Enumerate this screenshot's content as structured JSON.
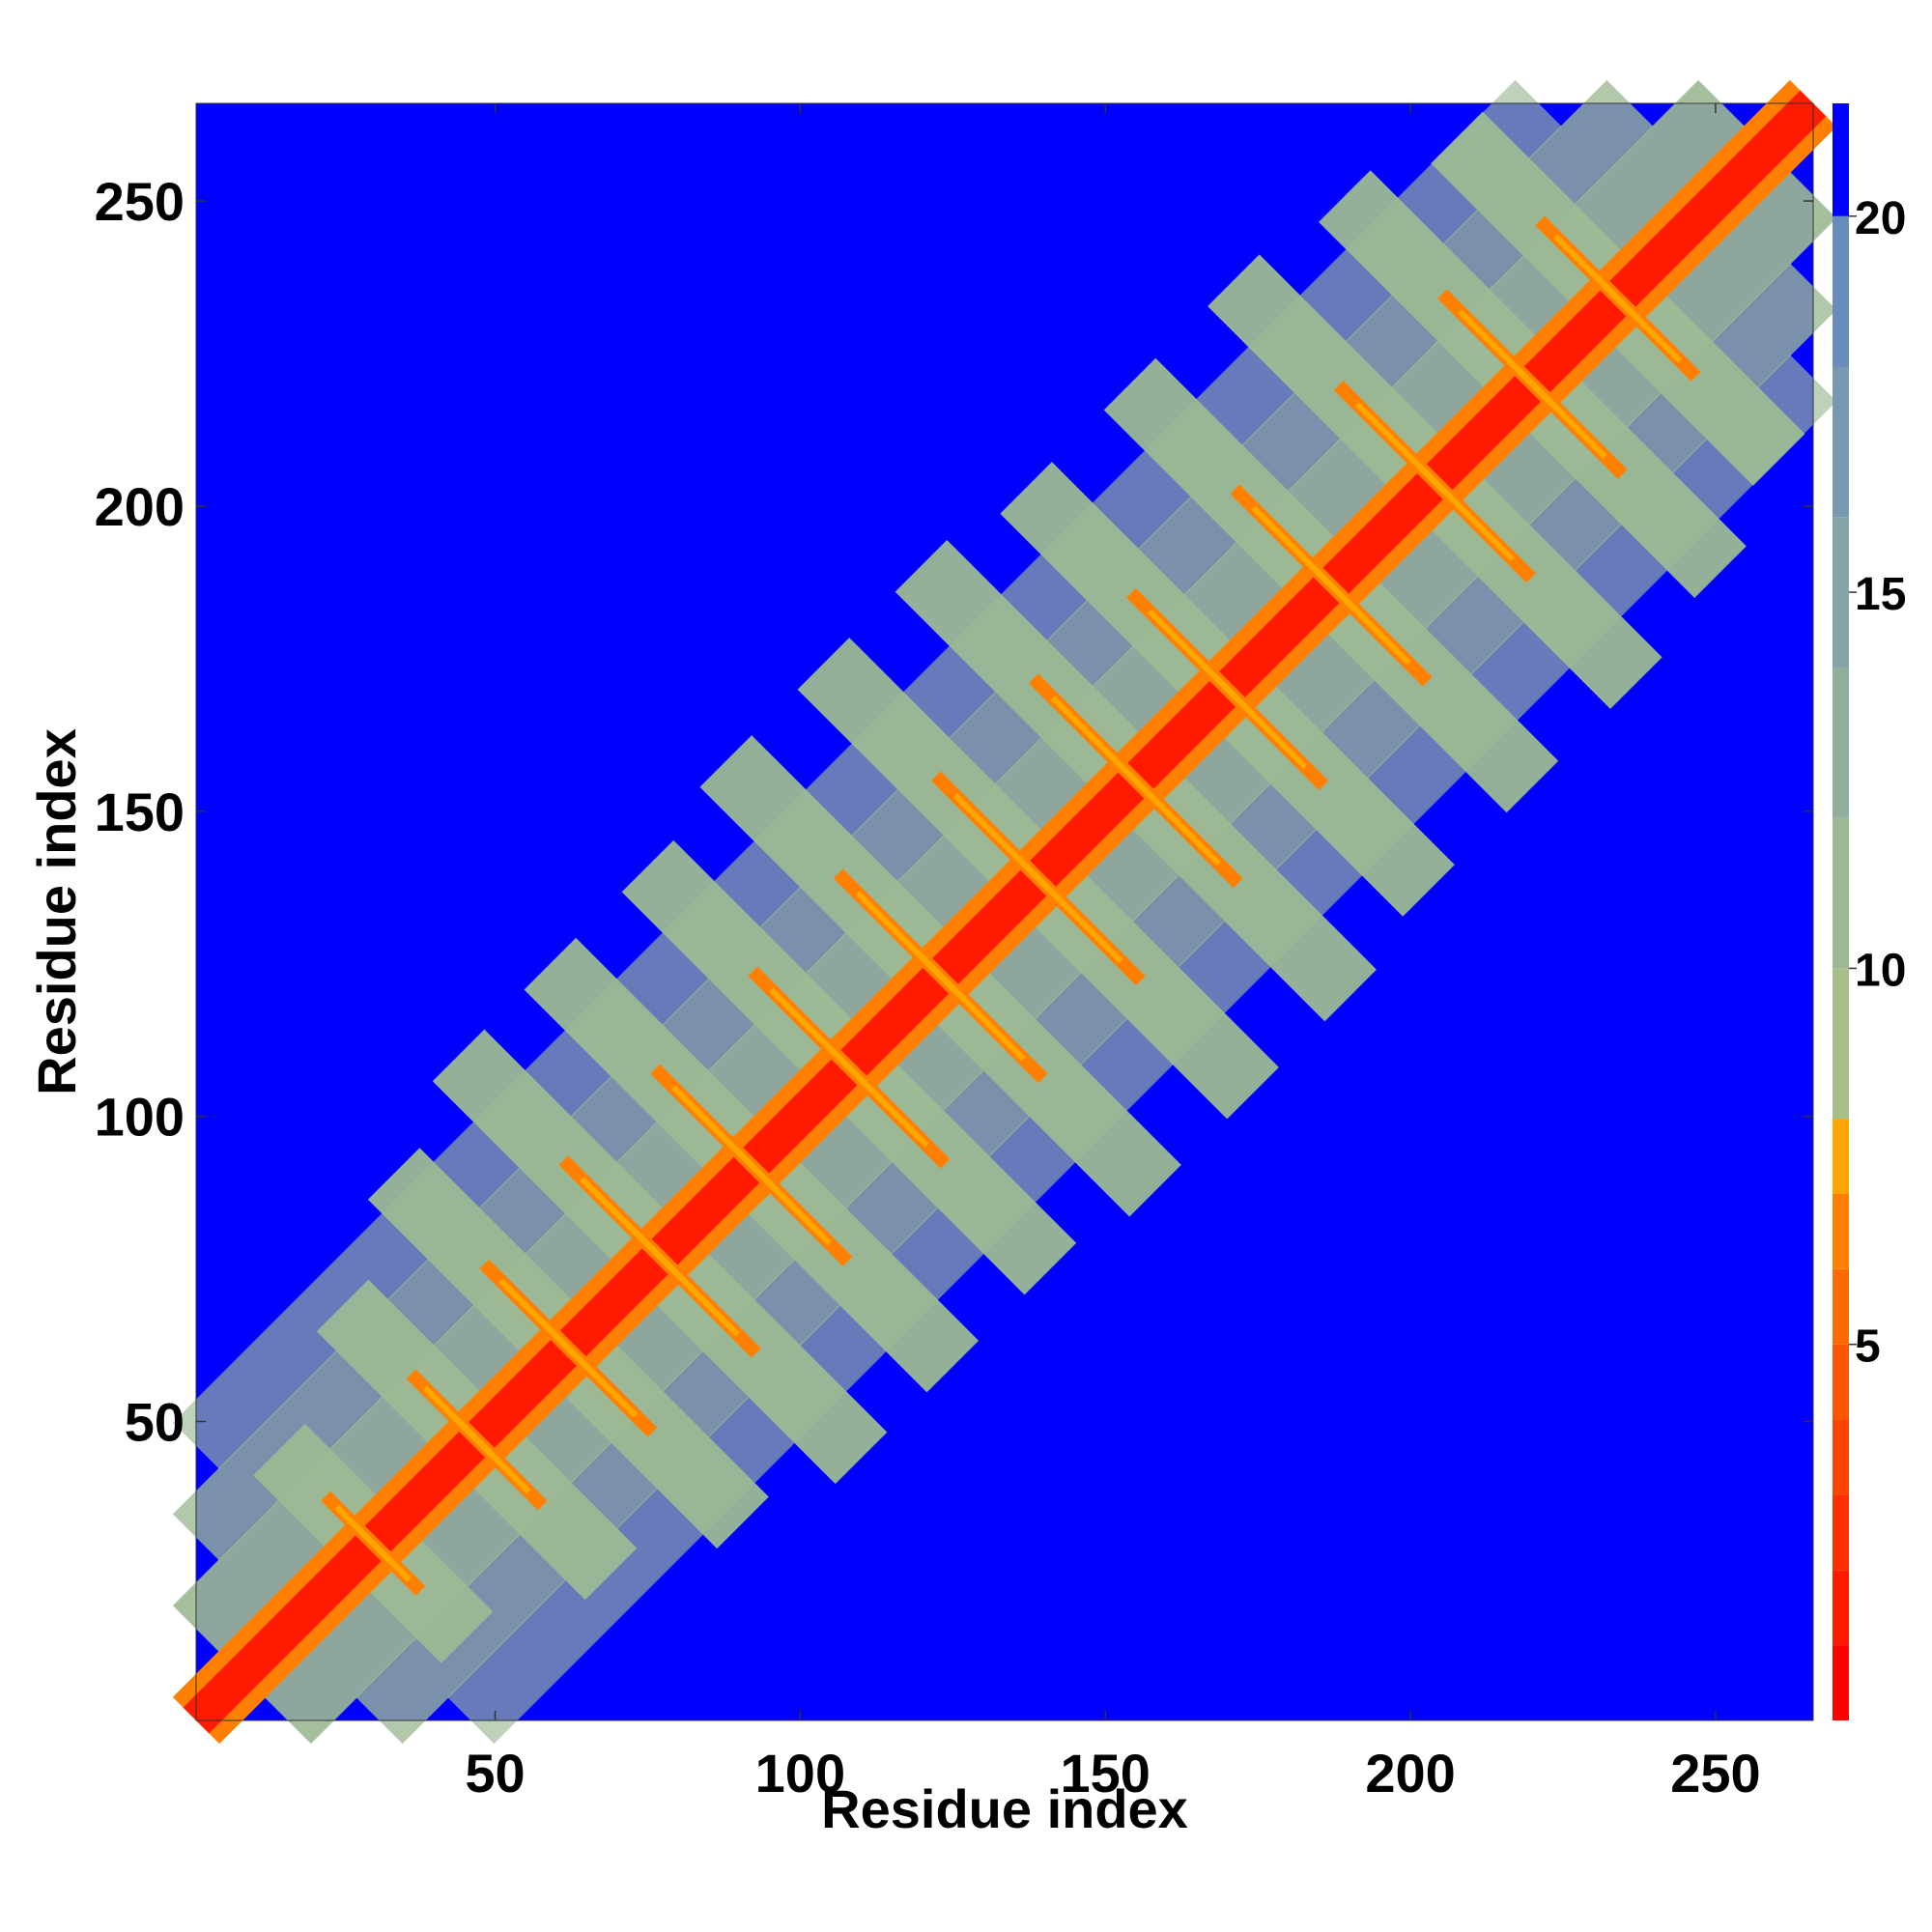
{
  "chart_data": {
    "type": "heatmap",
    "title": "",
    "xlabel": "Residue index",
    "ylabel": "Residue index",
    "xlim": [
      1,
      266
    ],
    "ylim": [
      1,
      266
    ],
    "x_ticks": [
      50,
      100,
      150,
      200,
      250
    ],
    "y_ticks": [
      50,
      100,
      150,
      200,
      250
    ],
    "colorbar": {
      "range": [
        0,
        21.5
      ],
      "ticks": [
        5,
        10,
        15,
        20
      ],
      "bins": [
        {
          "from": 0,
          "to": 1.0,
          "color": "#ff0000"
        },
        {
          "from": 1.0,
          "to": 2.0,
          "color": "#ff1a00"
        },
        {
          "from": 2.0,
          "to": 3.0,
          "color": "#ff2e00"
        },
        {
          "from": 3.0,
          "to": 4.0,
          "color": "#ff4200"
        },
        {
          "from": 4.0,
          "to": 5.0,
          "color": "#ff5500"
        },
        {
          "from": 5.0,
          "to": 6.0,
          "color": "#ff6a00"
        },
        {
          "from": 6.0,
          "to": 7.0,
          "color": "#ff8000"
        },
        {
          "from": 7.0,
          "to": 8.0,
          "color": "#ffa500"
        },
        {
          "from": 8.0,
          "to": 10.0,
          "color": "#a6bf8a"
        },
        {
          "from": 10.0,
          "to": 12.0,
          "color": "#9cb994"
        },
        {
          "from": 12.0,
          "to": 14.0,
          "color": "#90ae9c"
        },
        {
          "from": 14.0,
          "to": 16.0,
          "color": "#84a4a8"
        },
        {
          "from": 16.0,
          "to": 18.0,
          "color": "#7898b2"
        },
        {
          "from": 18.0,
          "to": 20.0,
          "color": "#6a8cbc"
        },
        {
          "from": 20.0,
          "to": 21.5,
          "color": "#0000ff"
        }
      ]
    },
    "background_color": "#0000ff",
    "matrix_description_values": {
      "diagonal_value": 1,
      "near_diagonal_value": 6,
      "contact_band_value": 11,
      "far_value": 21
    },
    "diagonal_band_half_width": 3,
    "antidiagonal_contacts": [
      {
        "center": [
          30,
          30
        ],
        "length": 14
      },
      {
        "center": [
          47,
          47
        ],
        "length": 20
      },
      {
        "center": [
          62,
          62
        ],
        "length": 26
      },
      {
        "center": [
          77,
          77
        ],
        "length": 30
      },
      {
        "center": [
          92,
          92
        ],
        "length": 30
      },
      {
        "center": [
          108,
          108
        ],
        "length": 30
      },
      {
        "center": [
          123,
          123
        ],
        "length": 32
      },
      {
        "center": [
          139,
          139
        ],
        "length": 32
      },
      {
        "center": [
          155,
          155
        ],
        "length": 32
      },
      {
        "center": [
          170,
          170
        ],
        "length": 30
      },
      {
        "center": [
          187,
          187
        ],
        "length": 30
      },
      {
        "center": [
          204,
          204
        ],
        "length": 30
      },
      {
        "center": [
          220,
          220
        ],
        "length": 28
      },
      {
        "center": [
          234,
          234
        ],
        "length": 24
      }
    ]
  }
}
